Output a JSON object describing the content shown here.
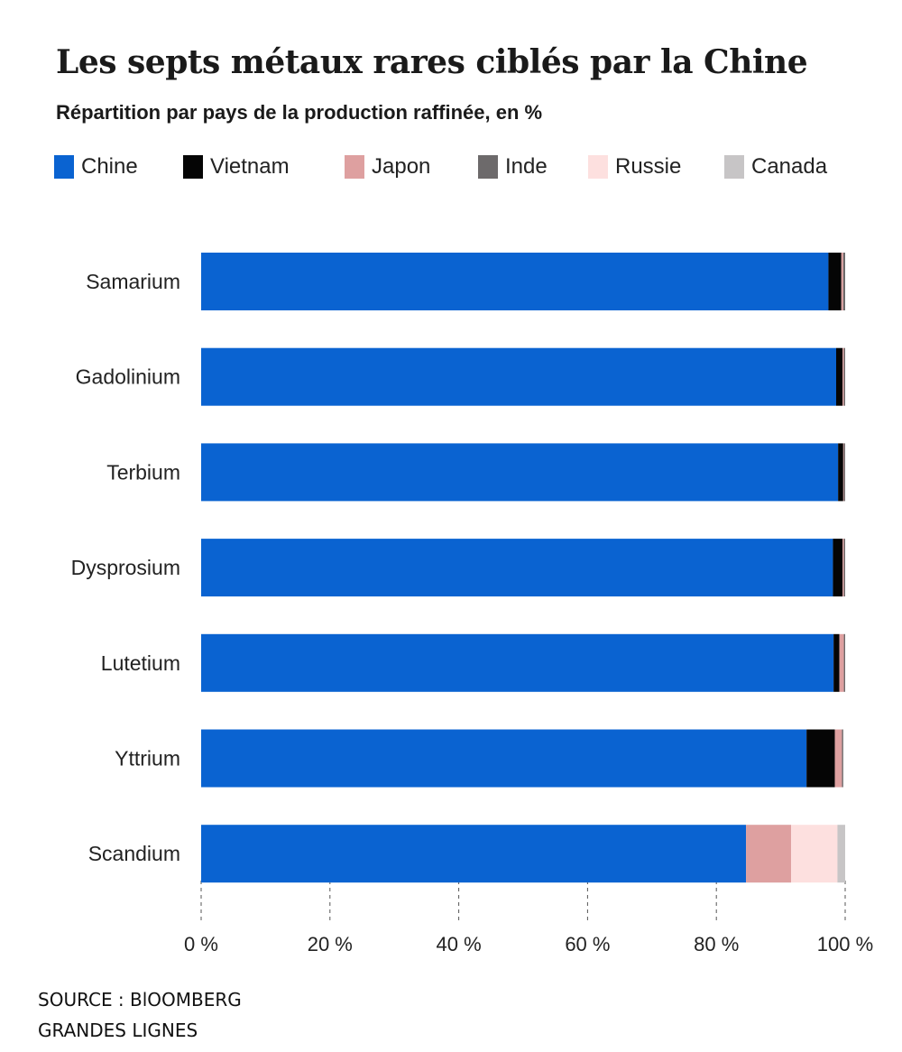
{
  "chart_data": {
    "type": "bar",
    "orientation": "horizontal",
    "stacked": true,
    "title": "Les septs métaux rares ciblés par la Chine",
    "subtitle": "Répartition par pays de la production raffinée, en %",
    "categories": [
      "Samarium",
      "Gadolinium",
      "Terbium",
      "Dysprosium",
      "Lutetium",
      "Yttrium",
      "Scandium"
    ],
    "series": [
      {
        "name": "Chine",
        "color": "#0a63d1",
        "values": [
          97.4,
          98.6,
          98.9,
          98.1,
          98.2,
          94.0,
          84.6
        ]
      },
      {
        "name": "Vietnam",
        "color": "#050505",
        "values": [
          2.0,
          1.0,
          0.8,
          1.5,
          0.9,
          4.4,
          0.0
        ]
      },
      {
        "name": "Japon",
        "color": "#dea0a0",
        "values": [
          0.3,
          0.2,
          0.1,
          0.2,
          0.7,
          1.1,
          7.0
        ]
      },
      {
        "name": "Inde",
        "color": "#6d6a6b",
        "values": [
          0.3,
          0.2,
          0.2,
          0.2,
          0.2,
          0.2,
          0.0
        ]
      },
      {
        "name": "Russie",
        "color": "#fde0df",
        "values": [
          0.0,
          0.0,
          0.0,
          0.0,
          0.0,
          0.0,
          7.2
        ]
      },
      {
        "name": "Canada",
        "color": "#c7c5c6",
        "values": [
          0.0,
          0.0,
          0.0,
          0.0,
          0.0,
          0.0,
          1.2
        ]
      }
    ],
    "x_ticks": [
      "0 %",
      "20 %",
      "40 %",
      "60 %",
      "80 %",
      "100 %"
    ],
    "x_tick_values": [
      0,
      20,
      40,
      60,
      80,
      100
    ],
    "xlim": [
      0,
      100
    ],
    "xlabel": "",
    "ylabel": "",
    "legend_position": "top"
  },
  "footer": {
    "source": "SOURCE : BlOOMBERG",
    "credit": "GRANDES LIGNES"
  }
}
